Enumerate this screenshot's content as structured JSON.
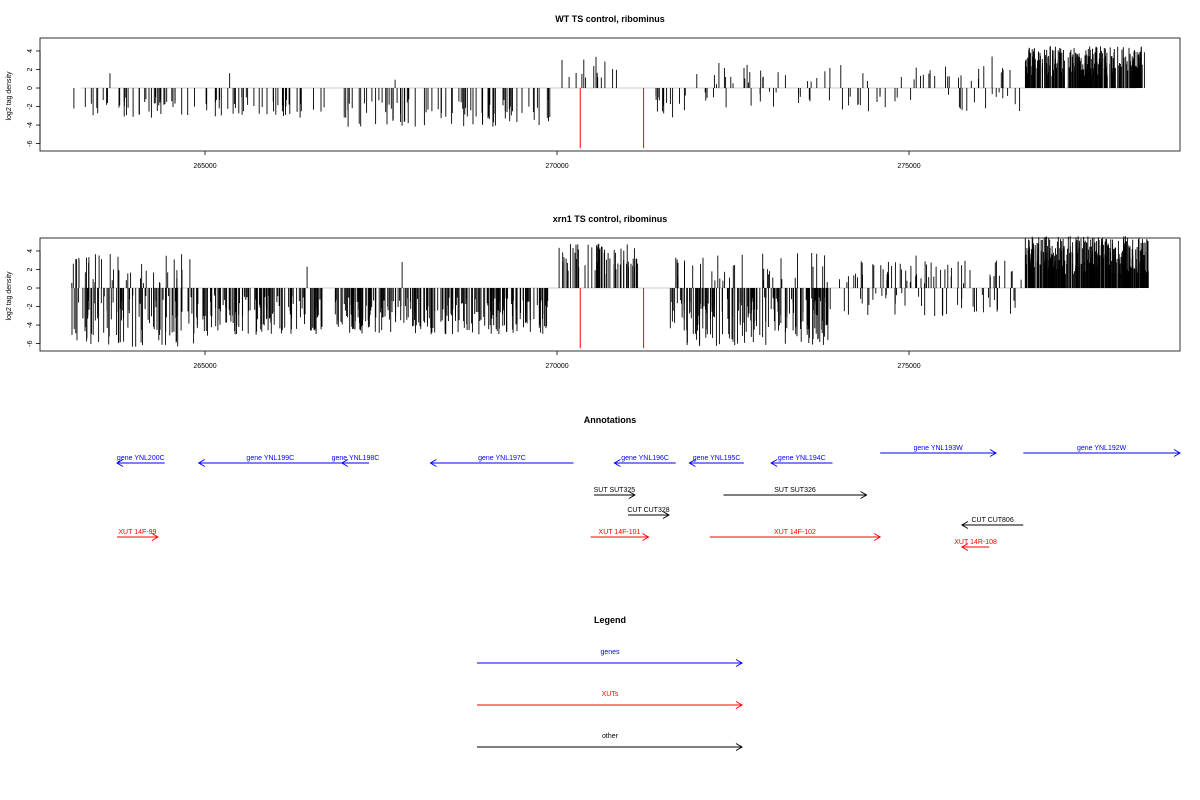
{
  "colors": {
    "genes": "#0000ff",
    "xuts": "#ff0000",
    "other": "#000000",
    "bars": "#000000",
    "markers": "#ff0000",
    "zero_line": "#bebebe"
  },
  "chart_data": [
    {
      "type": "bar",
      "title": "WT TS control, ribominus",
      "ylabel": "log2 tag density",
      "xlim": [
        262400,
        278600
      ],
      "ylim": [
        -6.8,
        5.4
      ],
      "y_ticks": [
        "-6",
        "-4",
        "-2",
        "0",
        "2",
        "4"
      ],
      "x_ticks": [
        "265000",
        "270000",
        "275000"
      ],
      "grid": false,
      "red_markers_x": [
        270330,
        271230
      ],
      "red_marker_y": -6.5,
      "segments": [
        {
          "x0": 263100,
          "x1": 264900,
          "kind": "neg",
          "lo": 1.0,
          "hi": 3.2,
          "density": 42,
          "spikes": [
            [
              263650,
              1.6
            ]
          ]
        },
        {
          "x0": 265000,
          "x1": 266700,
          "kind": "neg",
          "lo": 1.0,
          "hi": 3.2,
          "density": 42,
          "spikes": [
            [
              265350,
              1.6
            ]
          ]
        },
        {
          "x0": 266900,
          "x1": 269950,
          "kind": "neg",
          "lo": 1.2,
          "hi": 4.2,
          "density": 85,
          "spikes": [
            [
              267700,
              0.9
            ]
          ]
        },
        {
          "x0": 270050,
          "x1": 270850,
          "kind": "pos",
          "lo": 1.0,
          "hi": 3.4,
          "density": 14,
          "spikes": []
        },
        {
          "x0": 271400,
          "x1": 271900,
          "kind": "neg",
          "lo": 0.5,
          "hi": 3.4,
          "density": 14,
          "spikes": []
        },
        {
          "x0": 271950,
          "x1": 273950,
          "kind": "mix",
          "lo": 0.5,
          "hi": 2.8,
          "density": 38,
          "spikes": [
            [
              272300,
              2.7
            ],
            [
              272700,
              2.5
            ]
          ]
        },
        {
          "x0": 274000,
          "x1": 276600,
          "kind": "mix",
          "lo": 0.4,
          "hi": 3.2,
          "density": 52,
          "spikes": [
            [
              276180,
              3.4
            ]
          ]
        },
        {
          "x0": 276650,
          "x1": 278350,
          "kind": "dense_pos",
          "lo": 1.2,
          "hi": 4.6,
          "density": 280,
          "spikes": []
        }
      ]
    },
    {
      "type": "bar",
      "title": "xrn1 TS control, ribominus",
      "ylabel": "log2 tag density",
      "xlim": [
        262400,
        278600
      ],
      "ylim": [
        -6.8,
        5.4
      ],
      "y_ticks": [
        "-6",
        "-4",
        "-2",
        "0",
        "2",
        "4"
      ],
      "x_ticks": [
        "265000",
        "270000",
        "275000"
      ],
      "grid": false,
      "red_markers_x": [
        270330,
        271230
      ],
      "red_marker_y": -6.5,
      "segments": [
        {
          "x0": 263100,
          "x1": 264900,
          "kind": "mix_dense",
          "lo": 0.8,
          "hi": 6.4,
          "density": 140,
          "spikes": [
            [
              263300,
              1.7
            ],
            [
              263700,
              2.0
            ],
            [
              264100,
              2.6
            ]
          ]
        },
        {
          "x0": 264950,
          "x1": 266700,
          "kind": "neg",
          "lo": 0.8,
          "hi": 5.2,
          "density": 120,
          "spikes": [
            [
              266450,
              2.3
            ]
          ]
        },
        {
          "x0": 266850,
          "x1": 269900,
          "kind": "neg",
          "lo": 1.0,
          "hi": 5.0,
          "density": 230,
          "spikes": [
            [
              267800,
              2.8
            ]
          ]
        },
        {
          "x0": 270000,
          "x1": 271150,
          "kind": "pos",
          "lo": 1.5,
          "hi": 4.8,
          "density": 60,
          "spikes": []
        },
        {
          "x0": 271600,
          "x1": 273900,
          "kind": "mix_dense",
          "lo": 1.0,
          "hi": 6.3,
          "density": 220,
          "spikes": [
            [
              272200,
              1.8
            ]
          ]
        },
        {
          "x0": 274000,
          "x1": 276600,
          "kind": "mix",
          "lo": 0.5,
          "hi": 3.8,
          "density": 95,
          "spikes": [
            [
              275100,
              3.5
            ]
          ]
        },
        {
          "x0": 276650,
          "x1": 278400,
          "kind": "dense_pos",
          "lo": 1.5,
          "hi": 5.6,
          "density": 360,
          "spikes": []
        }
      ]
    }
  ],
  "annotations": {
    "title": "Annotations",
    "xlim": [
      263000,
      278600
    ],
    "features": [
      {
        "label": "gene YNL200C",
        "type": "gene",
        "start": 263000,
        "end": 263700,
        "strand": "-",
        "row": 1
      },
      {
        "label": "gene YNL199C",
        "type": "gene",
        "start": 264200,
        "end": 266300,
        "strand": "-",
        "row": 1
      },
      {
        "label": "gene YNL198C",
        "type": "gene",
        "start": 266300,
        "end": 266700,
        "strand": "-",
        "row": 1
      },
      {
        "label": "gene YNL197C",
        "type": "gene",
        "start": 267600,
        "end": 269700,
        "strand": "-",
        "row": 1
      },
      {
        "label": "gene YNL196C",
        "type": "gene",
        "start": 270300,
        "end": 271200,
        "strand": "-",
        "row": 1
      },
      {
        "label": "gene YNL195C",
        "type": "gene",
        "start": 271400,
        "end": 272200,
        "strand": "-",
        "row": 1
      },
      {
        "label": "gene YNL194C",
        "type": "gene",
        "start": 272600,
        "end": 273500,
        "strand": "-",
        "row": 1
      },
      {
        "label": "gene YNL193W",
        "type": "gene",
        "start": 274200,
        "end": 275900,
        "strand": "+",
        "row": 0
      },
      {
        "label": "gene YNL192W",
        "type": "gene",
        "start": 276300,
        "end": 278600,
        "strand": "+",
        "row": 0
      },
      {
        "label": "SUT SUT325",
        "type": "other",
        "start": 270000,
        "end": 270600,
        "strand": "+",
        "row": 2
      },
      {
        "label": "SUT SUT326",
        "type": "other",
        "start": 271900,
        "end": 274000,
        "strand": "+",
        "row": 2
      },
      {
        "label": "CUT CUT328",
        "type": "other",
        "start": 270500,
        "end": 271100,
        "strand": "+",
        "row": 3
      },
      {
        "label": "CUT CUT806",
        "type": "other",
        "start": 275400,
        "end": 276300,
        "strand": "-",
        "row": 4
      },
      {
        "label": "XUT 14F-99",
        "type": "xut",
        "start": 263000,
        "end": 263600,
        "strand": "+",
        "row": 5
      },
      {
        "label": "XUT 14F-101",
        "type": "xut",
        "start": 269950,
        "end": 270800,
        "strand": "+",
        "row": 5
      },
      {
        "label": "XUT 14F-102",
        "type": "xut",
        "start": 271700,
        "end": 274200,
        "strand": "+",
        "row": 5
      },
      {
        "label": "XUT 14R-108",
        "type": "xut",
        "start": 275400,
        "end": 275800,
        "strand": "-",
        "row": 6
      }
    ]
  },
  "legend": {
    "title": "Legend",
    "items": [
      {
        "label": "genes",
        "type": "gene"
      },
      {
        "label": "XUTs",
        "type": "xut"
      },
      {
        "label": "other",
        "type": "other"
      }
    ]
  }
}
